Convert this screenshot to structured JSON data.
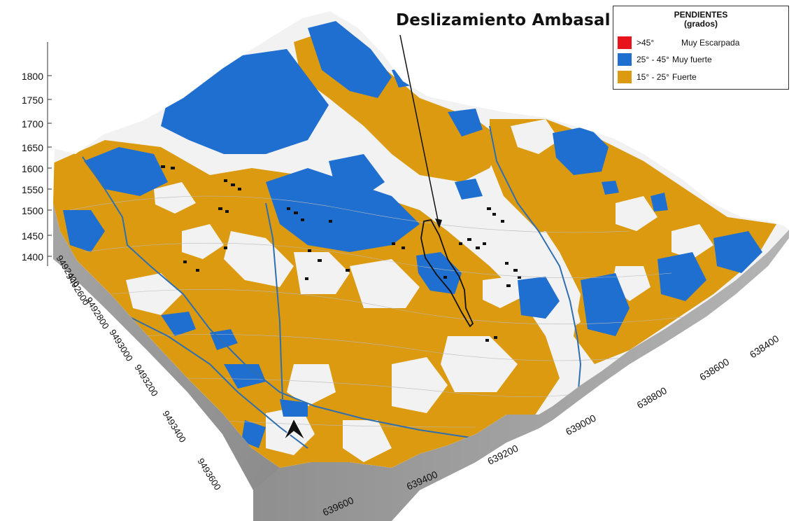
{
  "title": "Deslizamiento Ambasal",
  "legend": {
    "title": "PENDIENTES",
    "subtitle": "(grados)",
    "items": [
      {
        "range": ">45°",
        "label": "Muy Escarpada",
        "color": "#e8141c"
      },
      {
        "range": "25° - 45°",
        "label": "Muy fuerte",
        "color": "#1f6fd0"
      },
      {
        "range": "15° - 25°",
        "label": "Fuerte",
        "color": "#dc9a10"
      }
    ]
  },
  "elevation_axis": [
    "1800",
    "1750",
    "1700",
    "1650",
    "1600",
    "1550",
    "1500",
    "1450",
    "1400"
  ],
  "northing_axis": [
    "9492400",
    "9492600",
    "9492800",
    "9493000",
    "9493200",
    "9493400",
    "9493600"
  ],
  "easting_axis": [
    "639600",
    "639400",
    "639200",
    "639000",
    "638800",
    "638600",
    "638400"
  ],
  "colors": {
    "white_zone": "#f2f2f2",
    "side_wall": "#9c9c9c",
    "river": "#2f6fb0"
  },
  "icons": [
    "north-arrow-icon"
  ]
}
